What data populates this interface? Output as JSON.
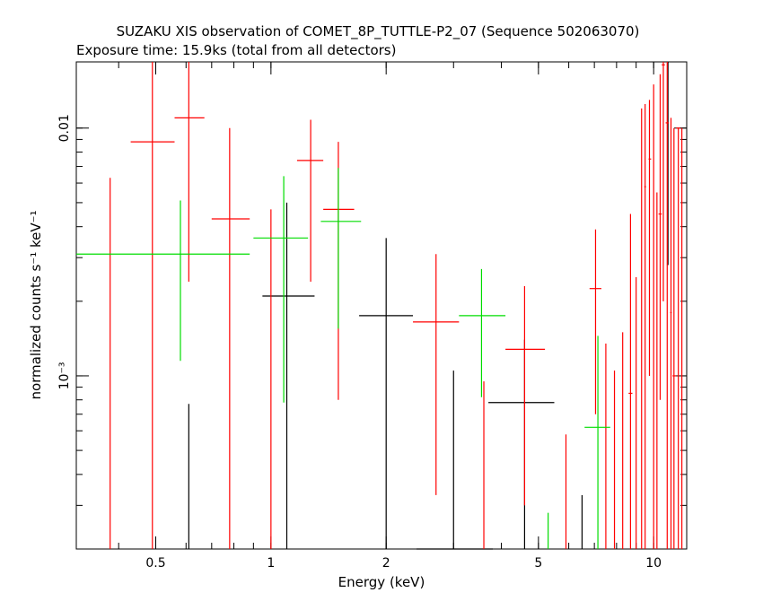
{
  "chart_data": {
    "type": "scatter",
    "title": "SUZAKU XIS observation of COMET_8P_TUTTLE-P2_07 (Sequence 502063070)",
    "subtitle": "Exposure time: 15.9ks (total from all detectors)",
    "xlabel": "Energy (keV)",
    "ylabel": "normalized counts s⁻¹ keV⁻¹",
    "x_scale": "log",
    "y_scale": "log",
    "xlim": [
      0.31,
      12.2
    ],
    "ylim": [
      0.0002,
      0.0185
    ],
    "x_ticks": [
      {
        "value": 0.5,
        "label": "0.5"
      },
      {
        "value": 1,
        "label": "1"
      },
      {
        "value": 2,
        "label": "2"
      },
      {
        "value": 5,
        "label": "5"
      },
      {
        "value": 10,
        "label": "10"
      }
    ],
    "y_ticks": [
      {
        "value": 0.001,
        "label": "10⁻³"
      },
      {
        "value": 0.01,
        "label": "0.01"
      }
    ],
    "grid": false,
    "series": [
      {
        "color": "#000000",
        "points": [
          {
            "x": 0.61,
            "xlo": 0.61,
            "xhi": 0.61,
            "y": 0.00043,
            "ylo": 0.0002,
            "yhi": 0.00077
          },
          {
            "x": 1.1,
            "xlo": 0.95,
            "xhi": 1.3,
            "y": 0.0021,
            "ylo": 0.0002,
            "yhi": 0.005
          },
          {
            "x": 2.0,
            "xlo": 1.7,
            "xhi": 2.35,
            "y": 0.00175,
            "ylo": 0.0002,
            "yhi": 0.0036
          },
          {
            "x": 3.0,
            "xlo": 2.4,
            "xhi": 3.8,
            "y": 0.000195,
            "ylo": 0.0002,
            "yhi": 0.00105
          },
          {
            "x": 4.6,
            "xlo": 3.7,
            "xhi": 5.5,
            "y": 0.00078,
            "ylo": 0.0002,
            "yhi": 0.0014
          },
          {
            "x": 6.5,
            "xlo": 6.5,
            "xhi": 6.5,
            "y": 0.00021,
            "ylo": 0.0002,
            "yhi": 0.00033
          },
          {
            "x": 10.9,
            "xlo": 10.9,
            "xhi": 10.9,
            "y": 0.006,
            "ylo": 0.0028,
            "yhi": 0.0185
          }
        ]
      },
      {
        "color": "#ff0000",
        "points": [
          {
            "x": 0.38,
            "xlo": 0.38,
            "xhi": 0.38,
            "y": 0.001,
            "ylo": 0.0002,
            "yhi": 0.0063
          },
          {
            "x": 0.49,
            "xlo": 0.43,
            "xhi": 0.56,
            "y": 0.0088,
            "ylo": 0.0002,
            "yhi": 0.0185
          },
          {
            "x": 0.61,
            "xlo": 0.56,
            "xhi": 0.67,
            "y": 0.011,
            "ylo": 0.0024,
            "yhi": 0.0185
          },
          {
            "x": 0.78,
            "xlo": 0.7,
            "xhi": 0.88,
            "y": 0.0043,
            "ylo": 0.0002,
            "yhi": 0.01
          },
          {
            "x": 1.0,
            "xlo": 1.0,
            "xhi": 1.0,
            "y": 0.002,
            "ylo": 0.0002,
            "yhi": 0.0047
          },
          {
            "x": 1.27,
            "xlo": 1.17,
            "xhi": 1.37,
            "y": 0.0074,
            "ylo": 0.0024,
            "yhi": 0.0108
          },
          {
            "x": 1.5,
            "xlo": 1.37,
            "xhi": 1.65,
            "y": 0.0047,
            "ylo": 0.0008,
            "yhi": 0.0088
          },
          {
            "x": 2.7,
            "xlo": 2.35,
            "xhi": 3.1,
            "y": 0.00165,
            "ylo": 0.00033,
            "yhi": 0.0031
          },
          {
            "x": 3.6,
            "xlo": 3.6,
            "xhi": 3.6,
            "y": 0.0005,
            "ylo": 0.0002,
            "yhi": 0.00095
          },
          {
            "x": 4.6,
            "xlo": 4.1,
            "xhi": 5.2,
            "y": 0.00128,
            "ylo": 0.0003,
            "yhi": 0.0023
          },
          {
            "x": 5.9,
            "xlo": 5.9,
            "xhi": 5.9,
            "y": 0.0003,
            "ylo": 0.0002,
            "yhi": 0.00058
          },
          {
            "x": 7.05,
            "xlo": 6.8,
            "xhi": 7.3,
            "y": 0.00225,
            "ylo": 0.0007,
            "yhi": 0.0039
          },
          {
            "x": 7.5,
            "xlo": 7.5,
            "xhi": 7.5,
            "y": 0.0006,
            "ylo": 0.0002,
            "yhi": 0.00135
          },
          {
            "x": 7.9,
            "xlo": 7.9,
            "xhi": 7.9,
            "y": 0.0004,
            "ylo": 0.0002,
            "yhi": 0.00105
          },
          {
            "x": 8.3,
            "xlo": 8.3,
            "xhi": 8.3,
            "y": 0.0006,
            "ylo": 0.0002,
            "yhi": 0.0015
          },
          {
            "x": 8.7,
            "xlo": 8.6,
            "xhi": 8.8,
            "y": 0.00085,
            "ylo": 0.0002,
            "yhi": 0.0045
          },
          {
            "x": 9.0,
            "xlo": 9.0,
            "xhi": 9.0,
            "y": 0.0008,
            "ylo": 0.0002,
            "yhi": 0.0025
          },
          {
            "x": 9.3,
            "xlo": 9.3,
            "xhi": 9.3,
            "y": 0.004,
            "ylo": 0.0002,
            "yhi": 0.012
          },
          {
            "x": 9.5,
            "xlo": 9.45,
            "xhi": 9.55,
            "y": 0.0058,
            "ylo": 0.0002,
            "yhi": 0.0125
          },
          {
            "x": 9.75,
            "xlo": 9.7,
            "xhi": 9.85,
            "y": 0.0075,
            "ylo": 0.001,
            "yhi": 0.013
          },
          {
            "x": 10.0,
            "xlo": 10.0,
            "xhi": 10.0,
            "y": 0.0035,
            "ylo": 0.0002,
            "yhi": 0.015
          },
          {
            "x": 10.2,
            "xlo": 10.2,
            "xhi": 10.2,
            "y": 0.0015,
            "ylo": 0.0002,
            "yhi": 0.0055
          },
          {
            "x": 10.4,
            "xlo": 10.3,
            "xhi": 10.5,
            "y": 0.0045,
            "ylo": 0.0008,
            "yhi": 0.0165
          },
          {
            "x": 10.6,
            "xlo": 10.5,
            "xhi": 10.7,
            "y": 0.018,
            "ylo": 0.002,
            "yhi": 0.0185
          },
          {
            "x": 10.85,
            "xlo": 10.75,
            "xhi": 10.95,
            "y": 0.0105,
            "ylo": 0.0002,
            "yhi": 0.0185
          },
          {
            "x": 11.1,
            "xlo": 11.05,
            "xhi": 11.15,
            "y": 0.0018,
            "ylo": 0.0002,
            "yhi": 0.011
          },
          {
            "x": 11.3,
            "xlo": 11.2,
            "xhi": 11.45,
            "y": 0.001,
            "ylo": 0.0002,
            "yhi": 0.01
          },
          {
            "x": 11.6,
            "xlo": 11.45,
            "xhi": 11.75,
            "y": 0.01,
            "ylo": 0.0002,
            "yhi": 0.01
          },
          {
            "x": 11.85,
            "xlo": 11.8,
            "xhi": 11.9,
            "y": 0.005,
            "ylo": 0.0002,
            "yhi": 0.01
          }
        ]
      },
      {
        "color": "#00dd00",
        "points": [
          {
            "x": 0.58,
            "xlo": 0.31,
            "xhi": 0.88,
            "y": 0.0031,
            "ylo": 0.00115,
            "yhi": 0.0051
          },
          {
            "x": 1.08,
            "xlo": 0.9,
            "xhi": 1.25,
            "y": 0.0036,
            "ylo": 0.00078,
            "yhi": 0.0064
          },
          {
            "x": 1.5,
            "xlo": 1.35,
            "xhi": 1.72,
            "y": 0.0042,
            "ylo": 0.00155,
            "yhi": 0.0069
          },
          {
            "x": 3.55,
            "xlo": 3.1,
            "xhi": 4.1,
            "y": 0.00175,
            "ylo": 0.00082,
            "yhi": 0.0027
          },
          {
            "x": 5.3,
            "xlo": 5.3,
            "xhi": 5.3,
            "y": 0.0002,
            "ylo": 0.0002,
            "yhi": 0.00028
          },
          {
            "x": 7.15,
            "xlo": 6.6,
            "xhi": 7.7,
            "y": 0.00062,
            "ylo": 0.0002,
            "yhi": 0.00145
          }
        ]
      }
    ]
  }
}
